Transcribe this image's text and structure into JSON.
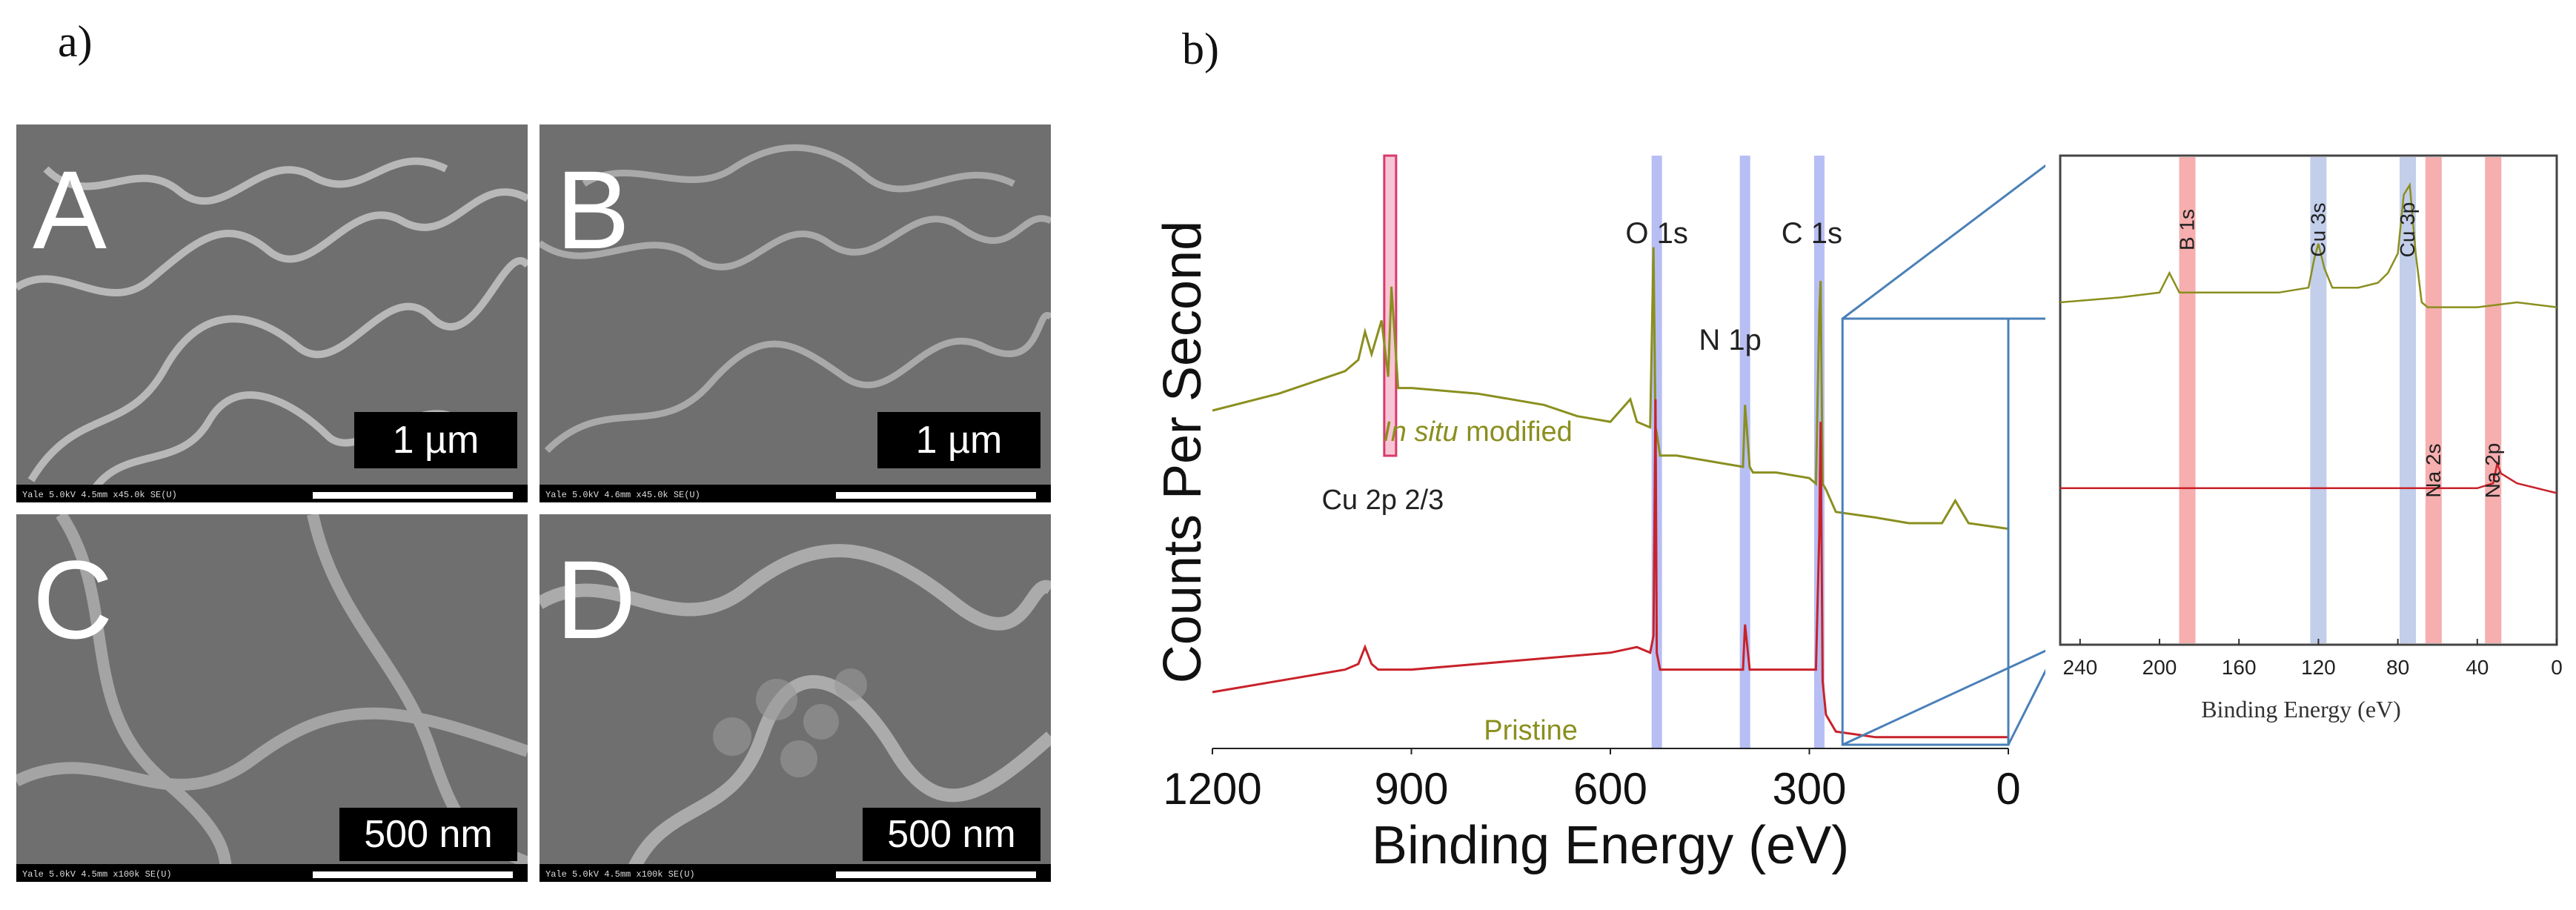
{
  "panel_a": {
    "label": "a)",
    "images": [
      {
        "letter": "A",
        "scale": "1 µm",
        "info": "Yale 5.0kV 4.5mm x45.0k SE(U)"
      },
      {
        "letter": "B",
        "scale": "1 µm",
        "info": "Yale 5.0kV 4.6mm x45.0k SE(U)"
      },
      {
        "letter": "C",
        "scale": "500 nm",
        "info": "Yale 5.0kV 4.5mm x100k SE(U)"
      },
      {
        "letter": "D",
        "scale": "500 nm",
        "info": "Yale 5.0kV 4.5mm x100k SE(U)"
      }
    ]
  },
  "panel_b": {
    "label": "b)",
    "colors": {
      "modified": "#8a8f1e",
      "pristine": "#c8222a",
      "blue_band": "#9fa8f0",
      "red_band": "#f4a0a0",
      "zoom_line": "#4a80b8"
    }
  },
  "chart_data": [
    {
      "type": "line",
      "title": "",
      "xlabel": "Binding Energy (eV)",
      "ylabel": "Counts Per Second",
      "xlim": [
        1200,
        0
      ],
      "xticks": [
        "1200",
        "900",
        "600",
        "300",
        "0"
      ],
      "xtick_values": [
        1200,
        900,
        600,
        300,
        0
      ],
      "series": [
        {
          "name": "In situ modified",
          "label_italic": "In situ",
          "label_rest": " modified",
          "x": [
            1200,
            1100,
            1000,
            980,
            970,
            960,
            945,
            935,
            930,
            920,
            900,
            800,
            700,
            650,
            600,
            570,
            560,
            540,
            535,
            532,
            530,
            525,
            500,
            450,
            400,
            397,
            390,
            385,
            350,
            300,
            290,
            285,
            283,
            280,
            275,
            260,
            200,
            150,
            100,
            80,
            60,
            0
          ],
          "y": [
            0.6,
            0.63,
            0.67,
            0.69,
            0.74,
            0.7,
            0.76,
            0.66,
            0.82,
            0.64,
            0.64,
            0.63,
            0.61,
            0.59,
            0.58,
            0.62,
            0.58,
            0.57,
            0.89,
            0.57,
            0.56,
            0.52,
            0.52,
            0.51,
            0.5,
            0.61,
            0.5,
            0.49,
            0.49,
            0.48,
            0.47,
            0.77,
            0.83,
            0.47,
            0.46,
            0.42,
            0.41,
            0.4,
            0.4,
            0.44,
            0.4,
            0.39
          ]
        },
        {
          "name": "Pristine",
          "label": "Pristine",
          "x": [
            1200,
            1100,
            1000,
            980,
            970,
            960,
            950,
            900,
            800,
            700,
            600,
            560,
            540,
            535,
            532,
            530,
            525,
            500,
            450,
            400,
            397,
            390,
            350,
            300,
            290,
            285,
            283,
            280,
            275,
            260,
            200,
            100,
            0
          ],
          "y": [
            0.1,
            0.12,
            0.14,
            0.15,
            0.18,
            0.15,
            0.14,
            0.14,
            0.15,
            0.16,
            0.17,
            0.18,
            0.17,
            0.2,
            0.62,
            0.17,
            0.14,
            0.14,
            0.14,
            0.14,
            0.22,
            0.14,
            0.14,
            0.14,
            0.14,
            0.38,
            0.58,
            0.12,
            0.06,
            0.03,
            0.02,
            0.02,
            0.02
          ]
        }
      ],
      "annotations": [
        {
          "text": "O 1s",
          "x": 530,
          "band": "blue"
        },
        {
          "text": "N 1p",
          "x": 397,
          "band": "blue"
        },
        {
          "text": "C 1s",
          "x": 285,
          "band": "blue"
        },
        {
          "text": "Cu 2p 2/3",
          "x": 932,
          "band": "red_box"
        }
      ],
      "zoom_region": [
        0,
        250
      ]
    },
    {
      "type": "line",
      "title": "",
      "xlabel": "Binding Energy (eV)",
      "ylabel": "",
      "xlim": [
        250,
        0
      ],
      "xticks": [
        "240",
        "200",
        "160",
        "120",
        "80",
        "40",
        "0"
      ],
      "xtick_values": [
        240,
        200,
        160,
        120,
        80,
        40,
        0
      ],
      "series": [
        {
          "name": "In situ modified",
          "x": [
            250,
            220,
            200,
            195,
            190,
            180,
            160,
            140,
            125,
            122,
            120,
            117,
            113,
            100,
            90,
            85,
            80,
            77,
            74,
            71,
            68,
            65,
            60,
            40,
            20,
            0
          ],
          "y": [
            0.7,
            0.71,
            0.72,
            0.76,
            0.72,
            0.72,
            0.72,
            0.72,
            0.73,
            0.79,
            0.82,
            0.77,
            0.73,
            0.73,
            0.74,
            0.76,
            0.8,
            0.92,
            0.94,
            0.8,
            0.7,
            0.69,
            0.69,
            0.69,
            0.7,
            0.69
          ]
        },
        {
          "name": "Pristine",
          "x": [
            250,
            200,
            150,
            100,
            60,
            40,
            32,
            30,
            28,
            20,
            0
          ],
          "y": [
            0.32,
            0.32,
            0.32,
            0.32,
            0.32,
            0.32,
            0.33,
            0.37,
            0.35,
            0.33,
            0.31
          ]
        }
      ],
      "annotations": [
        {
          "text": "B 1s",
          "x": 186,
          "band": "red"
        },
        {
          "text": "Cu 3s",
          "x": 120,
          "band": "blue"
        },
        {
          "text": "Cu 3p",
          "x": 75,
          "band": "blue"
        },
        {
          "text": "Na 2s",
          "x": 62,
          "band": "red"
        },
        {
          "text": "Na 2p",
          "x": 32,
          "band": "red"
        }
      ]
    }
  ]
}
